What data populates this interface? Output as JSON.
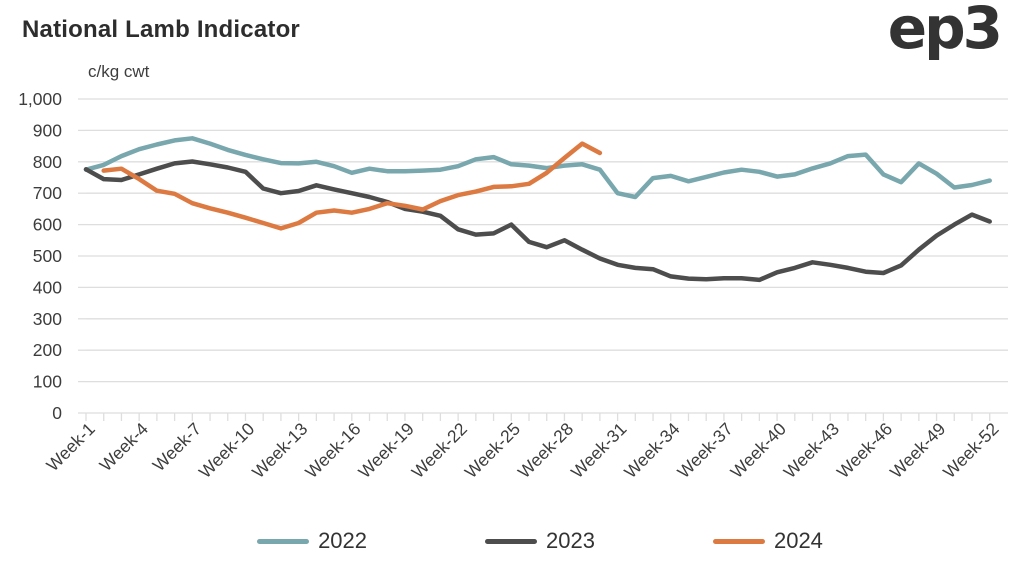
{
  "header": {
    "title": "National Lamb Indicator",
    "logo_text": "ep3"
  },
  "chart_data": {
    "type": "line",
    "title": "National Lamb Indicator",
    "ylabel": "c/kg cwt",
    "xlabel": "",
    "ylim": [
      0,
      1000
    ],
    "y_ticks": [
      0,
      100,
      200,
      300,
      400,
      500,
      600,
      700,
      800,
      900,
      1000
    ],
    "y_tick_labels": [
      "0",
      "100",
      "200",
      "300",
      "400",
      "500",
      "600",
      "700",
      "800",
      "900",
      "1,000"
    ],
    "x_weeks": 52,
    "x_tick_weeks": [
      1,
      4,
      7,
      10,
      13,
      16,
      19,
      22,
      25,
      28,
      31,
      34,
      37,
      40,
      43,
      46,
      49,
      52
    ],
    "x_tick_labels": [
      "Week-1",
      "Week-4",
      "Week-7",
      "Week-10",
      "Week-13",
      "Week-16",
      "Week-19",
      "Week-22",
      "Week-25",
      "Week-28",
      "Week-31",
      "Week-34",
      "Week-37",
      "Week-40",
      "Week-43",
      "Week-46",
      "Week-49",
      "Week-52"
    ],
    "grid": "horizontal",
    "legend_position": "bottom",
    "series": [
      {
        "name": "2022",
        "color": "#79A7AE",
        "values": [
          775,
          790,
          818,
          840,
          855,
          868,
          875,
          858,
          838,
          822,
          808,
          796,
          795,
          800,
          786,
          765,
          778,
          770,
          770,
          772,
          775,
          786,
          808,
          815,
          792,
          788,
          780,
          788,
          792,
          775,
          700,
          688,
          748,
          755,
          738,
          752,
          766,
          775,
          768,
          753,
          760,
          779,
          795,
          818,
          823,
          760,
          735,
          795,
          762,
          718,
          726,
          740
        ]
      },
      {
        "name": "2023",
        "color": "#4D4D4D",
        "values": [
          776,
          745,
          742,
          760,
          778,
          795,
          801,
          792,
          782,
          768,
          715,
          700,
          707,
          725,
          712,
          700,
          688,
          672,
          650,
          641,
          628,
          585,
          568,
          572,
          600,
          545,
          528,
          550,
          520,
          492,
          472,
          462,
          458,
          435,
          428,
          426,
          429,
          429,
          424,
          448,
          462,
          480,
          472,
          462,
          450,
          446,
          470,
          520,
          565,
          600,
          632,
          610
        ]
      },
      {
        "name": "2024",
        "color": "#DC7A42",
        "values": [
          null,
          772,
          778,
          745,
          708,
          698,
          668,
          652,
          638,
          622,
          605,
          588,
          605,
          638,
          645,
          638,
          650,
          668,
          660,
          648,
          675,
          694,
          705,
          720,
          722,
          730,
          765,
          812,
          858,
          828
        ]
      }
    ],
    "style": {
      "grid_color": "#DEDEDE",
      "axis_tick_color": "#DEDEDE",
      "line_width": 4.5
    }
  }
}
